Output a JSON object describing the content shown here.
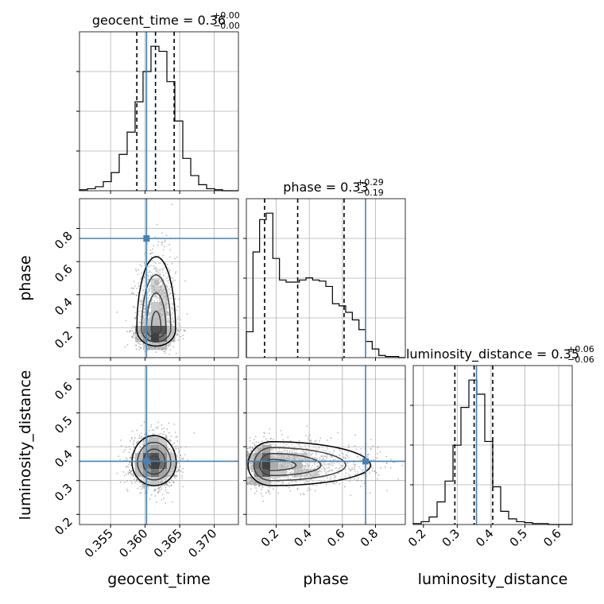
{
  "chart_data": {
    "type": "corner",
    "parameters": [
      {
        "name": "geocent_time",
        "label": "geocent_time",
        "range": [
          0.3505,
          0.3735
        ],
        "ticks": [
          0.355,
          0.36,
          0.365,
          0.37
        ],
        "tick_labels": [
          "0.355",
          "0.360",
          "0.365",
          "0.370"
        ],
        "truth": 0.3602,
        "quantiles": [
          0.3588,
          0.3615,
          0.3642
        ],
        "title_value": "0.36",
        "title_plus": "+0.00",
        "title_minus": "−0.00",
        "hist": {
          "edges_start": 0.3505,
          "bin_width": 0.00115,
          "counts": [
            1,
            2,
            4,
            9,
            18,
            36,
            58,
            88,
            118,
            143,
            138,
            108,
            69,
            32,
            15,
            6,
            2,
            1,
            0,
            0
          ]
        }
      },
      {
        "name": "phase",
        "label": "phase",
        "range": [
          0.02,
          0.98
        ],
        "ticks": [
          0.2,
          0.4,
          0.6,
          0.8
        ],
        "tick_labels": [
          "0.2",
          "0.4",
          "0.6",
          "0.8"
        ],
        "truth": 0.74,
        "quantiles": [
          0.13,
          0.33,
          0.61
        ],
        "title_value": "0.33",
        "title_plus": "+0.29",
        "title_minus": "−0.19",
        "hist": {
          "edges_start": 0.02,
          "bin_width": 0.04,
          "counts": [
            24,
            98,
            128,
            134,
            92,
            72,
            70,
            70,
            72,
            74,
            72,
            71,
            66,
            50,
            48,
            42,
            35,
            26,
            15,
            8,
            2,
            1,
            1,
            0
          ]
        }
      },
      {
        "name": "luminosity_distance",
        "label": "luminosity_distance",
        "range": [
          0.17,
          0.64
        ],
        "ticks": [
          0.2,
          0.3,
          0.4,
          0.5,
          0.6
        ],
        "tick_labels": [
          "0.2",
          "0.3",
          "0.4",
          "0.5",
          "0.6"
        ],
        "truth": 0.357,
        "quantiles": [
          0.293,
          0.35,
          0.405
        ],
        "title_value": "0.35",
        "title_plus": "+0.06",
        "title_minus": "−0.06",
        "hist": {
          "edges_start": 0.17,
          "bin_width": 0.0235,
          "counts": [
            1,
            3,
            8,
            24,
            46,
            84,
            124,
            153,
            138,
            88,
            40,
            14,
            6,
            3,
            2,
            1,
            1,
            0,
            0,
            0
          ]
        }
      }
    ],
    "pairs": [
      {
        "x": "geocent_time",
        "y": "phase",
        "x_center": 0.3616,
        "x_sigma": 0.0014,
        "y_peak": 0.19,
        "y_sigma_low": 0.05,
        "y_sigma_high": 0.22,
        "truth": [
          0.3602,
          0.74
        ]
      },
      {
        "x": "geocent_time",
        "y": "luminosity_distance",
        "x_center": 0.3613,
        "x_sigma": 0.0016,
        "y_peak": 0.353,
        "y_sigma_low": 0.034,
        "y_sigma_high": 0.04,
        "truth": [
          0.3602,
          0.357
        ]
      },
      {
        "x": "phase",
        "y": "luminosity_distance",
        "x_peak": 0.17,
        "x_sigma_low": 0.07,
        "x_sigma_high": 0.3,
        "y_peak": 0.345,
        "y_sigma_low": 0.03,
        "y_sigma_high": 0.035,
        "truth": [
          0.74,
          0.357
        ]
      }
    ],
    "colors": {
      "truth": "#4682b4",
      "contour": "#000000",
      "grid": "#b0b0b0",
      "scatter": "#8c8c8c"
    },
    "grid": true
  }
}
